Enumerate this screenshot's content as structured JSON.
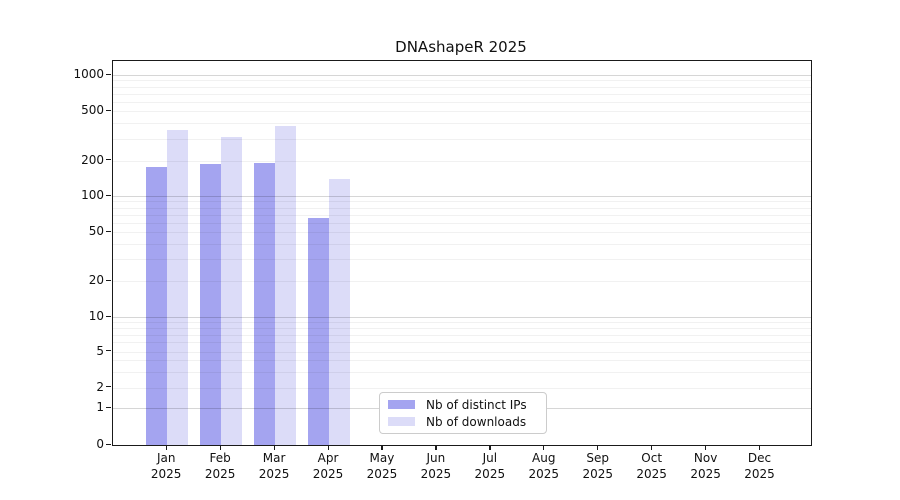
{
  "title": "DNAshapeR 2025",
  "chart_data": {
    "type": "bar",
    "title": "DNAshapeR 2025",
    "categories": [
      "Jan",
      "Feb",
      "Mar",
      "Apr",
      "May",
      "Jun",
      "Jul",
      "Aug",
      "Sep",
      "Oct",
      "Nov",
      "Dec"
    ],
    "x_tick_year": "2025",
    "series": [
      {
        "name": "Nb of distinct IPs",
        "color": "#a4a4f0",
        "values": [
          175,
          185,
          190,
          65,
          0,
          0,
          0,
          0,
          0,
          0,
          0,
          0
        ]
      },
      {
        "name": "Nb of downloads",
        "color": "#dcdcf8",
        "values": [
          350,
          310,
          380,
          140,
          0,
          0,
          0,
          0,
          0,
          0,
          0,
          0
        ]
      }
    ],
    "y_ticks": [
      0,
      1,
      2,
      5,
      10,
      20,
      50,
      100,
      200,
      500,
      1000
    ],
    "y_scale": "symlog",
    "ylim": [
      0,
      1300
    ],
    "xlabel": "",
    "ylabel": "",
    "grid": "horizontal",
    "legend_position": "bottom-center",
    "colors": {
      "distinct_ips": "#a4a4f0",
      "downloads": "#dcdcf8",
      "major_grid": "#d6d6d6",
      "minor_grid": "#f0f0f0",
      "axis": "#1a1a1a"
    }
  }
}
